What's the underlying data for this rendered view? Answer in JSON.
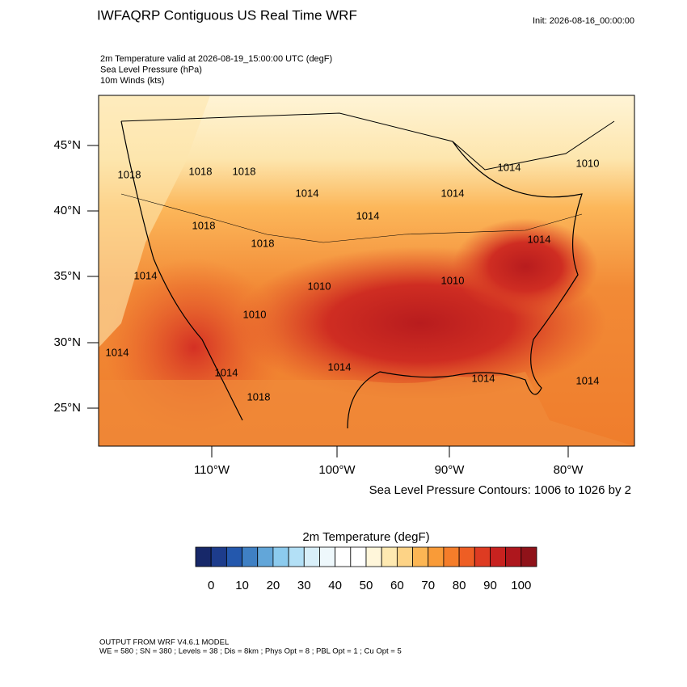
{
  "header": {
    "title": "IWFAQRP Contiguous US Real Time WRF",
    "init": "Init: 2026-08-16_00:00:00"
  },
  "fields": [
    "2m Temperature valid at 2026-08-19_15:00:00 UTC   (degF)",
    "Sea Level Pressure   (hPa)",
    "10m Winds   (kts)"
  ],
  "map": {
    "lat_labels": [
      "45°N",
      "40°N",
      "35°N",
      "30°N",
      "25°N"
    ],
    "lon_labels": [
      "110°W",
      "100°W",
      "90°W",
      "80°W"
    ],
    "pressure_labels": [
      "1018",
      "1018",
      "1018",
      "1014",
      "1014",
      "1014",
      "1014",
      "1010",
      "1018",
      "1018",
      "1014",
      "1010",
      "1010",
      "1014",
      "1014",
      "1010",
      "1014",
      "1018",
      "1014",
      "1014",
      "1014"
    ],
    "contour_note": "Sea Level Pressure Contours: 1006 to 1026 by 2"
  },
  "colorbar": {
    "title": "2m Temperature  (degF)",
    "colors": [
      "#172869",
      "#1d3c8c",
      "#2458ad",
      "#3f80c4",
      "#62a6d9",
      "#8ccbee",
      "#b3e0f6",
      "#d8eff9",
      "#eef8fc",
      "#ffffff",
      "#ffffff",
      "#fff6da",
      "#fee9b1",
      "#fdd386",
      "#fcb654",
      "#f99b38",
      "#f57d2a",
      "#ee5e24",
      "#de3b22",
      "#c8221f",
      "#ae171d",
      "#8f1219"
    ],
    "labels": [
      "0",
      "10",
      "20",
      "30",
      "40",
      "50",
      "60",
      "70",
      "80",
      "90",
      "100"
    ]
  },
  "footer": {
    "lines": [
      "OUTPUT FROM WRF V4.6.1 MODEL",
      "WE = 580 ; SN = 380 ; Levels = 38 ; Dis = 8km ; Phys Opt = 8 ; PBL Opt = 1 ; Cu Opt = 5"
    ]
  }
}
